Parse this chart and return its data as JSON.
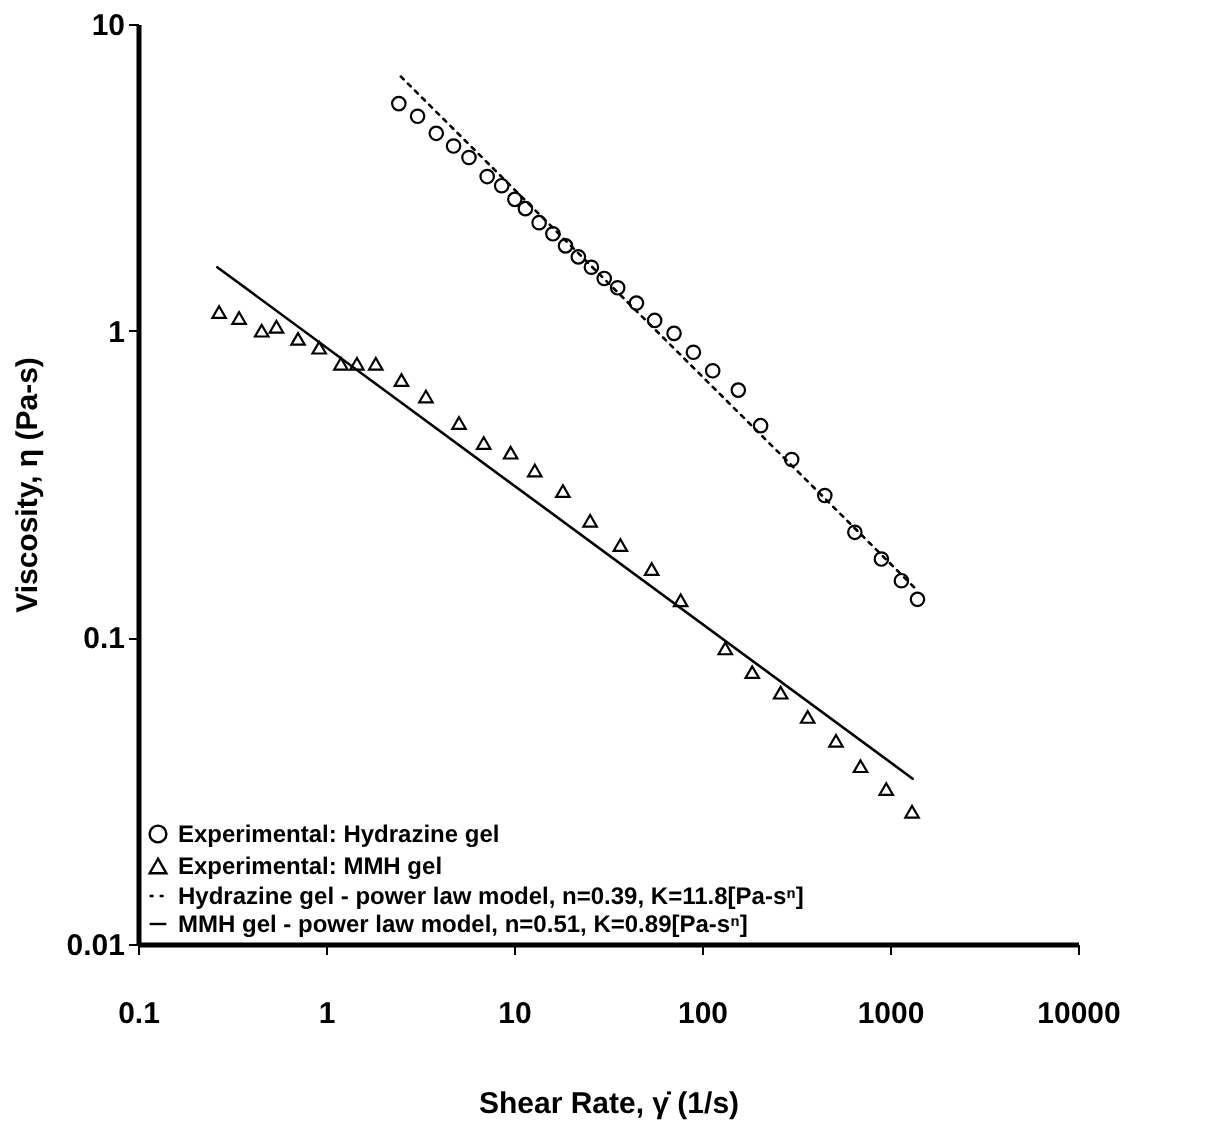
{
  "chart_data": {
    "type": "scatter",
    "xlabel": "Shear Rate, γ̇  (1/s)",
    "ylabel": "Viscosity, η (Pa-s)",
    "log": "xy",
    "xlim": [
      0.1,
      10000
    ],
    "xticks": [
      0.1,
      1,
      10,
      100,
      1000,
      10000
    ],
    "ylim": [
      0.01,
      10
    ],
    "yticks": [
      0.01,
      0.1,
      1,
      10
    ],
    "grid": false,
    "legend": "bottom left",
    "series": [
      {
        "name": "Experimental: Hydrazine gel",
        "marker": "circle",
        "color": "#000000",
        "x": [
          2.44,
          3.07,
          3.86,
          4.77,
          5.76,
          7.2,
          8.6,
          10.1,
          11.5,
          13.6,
          16.1,
          18.8,
          22,
          25.8,
          30.2,
          35.6,
          44.8,
          56,
          71,
          90,
          114,
          156,
          205,
          300,
          450,
          650,
          900,
          1150,
          1400
        ],
        "values": [
          5.5,
          5.0,
          4.4,
          4.0,
          3.67,
          3.18,
          2.97,
          2.68,
          2.5,
          2.25,
          2.07,
          1.89,
          1.74,
          1.61,
          1.48,
          1.38,
          1.23,
          1.08,
          0.98,
          0.85,
          0.74,
          0.64,
          0.49,
          0.38,
          0.29,
          0.22,
          0.18,
          0.153,
          0.133
        ]
      },
      {
        "name": "Experimental: MMH gel",
        "marker": "triangle",
        "color": "#000000",
        "x": [
          0.27,
          0.345,
          0.455,
          0.545,
          0.71,
          0.92,
          1.2,
          1.46,
          1.84,
          2.52,
          3.4,
          5.1,
          6.9,
          9.6,
          12.9,
          18.2,
          25.4,
          36.8,
          54,
          77,
          133,
          185,
          262,
          365,
          516,
          697,
          955,
          1310
        ],
        "values": [
          1.15,
          1.1,
          1.0,
          1.03,
          0.94,
          0.88,
          0.78,
          0.78,
          0.78,
          0.69,
          0.61,
          0.5,
          0.43,
          0.4,
          0.35,
          0.3,
          0.24,
          0.2,
          0.167,
          0.132,
          0.092,
          0.077,
          0.066,
          0.055,
          0.046,
          0.038,
          0.032,
          0.027
        ]
      },
      {
        "name": "Hydrazine gel - power law model, n=0.39, K=11.8[Pa-sⁿ]",
        "type": "line",
        "line_style": "dotted",
        "color": "#000000",
        "x": [
          2.5,
          1400
        ],
        "values": [
          6.74,
          0.142
        ]
      },
      {
        "name": "MMH gel - power law model, n=0.51, K=0.89[Pa-sⁿ]",
        "type": "line",
        "line_style": "solid",
        "color": "#000000",
        "x": [
          0.264,
          1320
        ],
        "values": [
          1.61,
          0.0346
        ]
      }
    ]
  }
}
